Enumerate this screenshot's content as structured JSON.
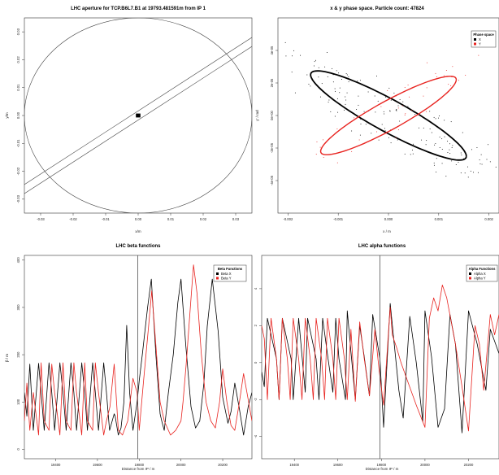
{
  "colors": {
    "black": "#000000",
    "red": "#e8231f",
    "grey": "#555555"
  },
  "panels": {
    "aperture": {
      "title": "LHC aperture for TCP.B6L7.B1 at 19793.481591m from IP 1",
      "xlabel": "x/m",
      "ylabel": "y/m"
    },
    "phase": {
      "title": "x & y phase space. Particle count: 47824",
      "xlabel": "x / m",
      "ylabel": "y' / rad"
    },
    "beta": {
      "title": "LHC beta functions",
      "xlabel": "Distance from IP / m",
      "ylabel": "β / m"
    },
    "alpha": {
      "title": "LHC alpha functions",
      "xlabel": "Distance from IP / m",
      "ylabel": ""
    }
  },
  "chart_data": [
    {
      "type": "scatter",
      "title": "LHC aperture for TCP.B6L7.B1 at 19793.481591m from IP 1",
      "xlabel": "x/m",
      "ylabel": "y/m",
      "xlim": [
        -0.035,
        0.035
      ],
      "ylim": [
        -0.035,
        0.035
      ],
      "xticks": [
        "-0.03",
        "-0.02",
        "-0.01",
        "0.00",
        "0.01",
        "0.02",
        "0.03"
      ],
      "yticks": [
        "-0.03",
        "-0.02",
        "-0.01",
        "0.00",
        "0.01",
        "0.02",
        "0.03"
      ],
      "aperture_circle_radius": 0.035,
      "collimator_angle_deg": 37,
      "collimator_half_gap": 0.0013,
      "beam_spot_half_size": 0.0007,
      "grid": false
    },
    {
      "type": "scatter",
      "title": "x & y phase space. Particle count: 47824",
      "xlabel": "x / m",
      "ylabel": "y' / rad",
      "xlim": [
        -0.0022,
        0.0022
      ],
      "ylim": [
        -6e-05,
        6e-05
      ],
      "xticks": [
        "-0.002",
        "-0.001",
        "0.000",
        "0.001",
        "0.002"
      ],
      "yticks": [
        "-4e-05",
        "-2e-05",
        "0e+00",
        "2e-05",
        "4e-05"
      ],
      "legend": {
        "title": "Phase space",
        "position": "top-right",
        "entries": [
          "X",
          "Y"
        ]
      },
      "series": [
        {
          "name": "X",
          "color": "#000000",
          "ellipse": {
            "center": [
              0,
              0
            ],
            "x_amplitude": 0.00155,
            "y_amplitude": 2.5e-05,
            "slope": "negative"
          }
        },
        {
          "name": "Y",
          "color": "#e8231f",
          "ellipse": {
            "center": [
              0,
              0
            ],
            "x_amplitude": 0.00135,
            "y_amplitude": 2.2e-05,
            "slope": "positive"
          }
        }
      ]
    },
    {
      "type": "line",
      "title": "LHC beta functions",
      "xlabel": "Distance from IP / m",
      "ylabel": "β / m",
      "xlim": [
        19250,
        20340
      ],
      "ylim": [
        -20,
        410
      ],
      "xticks": [
        "19400",
        "19600",
        "19800",
        "20000",
        "20200"
      ],
      "yticks": [
        "0",
        "100",
        "200",
        "300",
        "400"
      ],
      "vline": 19793,
      "legend": {
        "title": "Beta Functions",
        "position": "top-right",
        "entries": [
          "Beta X",
          "Beta Y"
        ]
      },
      "series": [
        {
          "name": "Beta X",
          "color": "#000000",
          "x": [
            19250,
            19262,
            19276,
            19293,
            19318,
            19330,
            19345,
            19368,
            19381,
            19395,
            19420,
            19435,
            19450,
            19473,
            19487,
            19500,
            19525,
            19539,
            19552,
            19577,
            19590,
            19605,
            19630,
            19643,
            19658,
            19680,
            19685,
            19700,
            19713,
            19727,
            19740,
            19754,
            19770,
            19790,
            19800,
            19815,
            19840,
            19858,
            19880,
            19900,
            19908,
            19920,
            19940,
            19963,
            19985,
            20000,
            20023,
            20048,
            20070,
            20090,
            20110,
            20126,
            20150,
            20178,
            20200,
            20225,
            20240,
            20258,
            20280,
            20300,
            20322,
            20340
          ],
          "values": [
            120,
            70,
            180,
            40,
            182,
            120,
            40,
            183,
            120,
            40,
            183,
            120,
            40,
            183,
            120,
            40,
            183,
            120,
            40,
            183,
            120,
            40,
            183,
            120,
            40,
            75,
            70,
            30,
            45,
            100,
            262,
            120,
            40,
            100,
            145,
            200,
            300,
            360,
            200,
            75,
            60,
            40,
            120,
            200,
            310,
            360,
            220,
            90,
            45,
            60,
            140,
            260,
            360,
            250,
            110,
            55,
            80,
            140,
            85,
            30,
            90,
            120
          ]
        },
        {
          "name": "Beta Y",
          "color": "#e8231f",
          "x": [
            19250,
            19262,
            19276,
            19293,
            19318,
            19330,
            19345,
            19368,
            19381,
            19395,
            19420,
            19435,
            19450,
            19473,
            19487,
            19500,
            19525,
            19539,
            19552,
            19577,
            19590,
            19605,
            19630,
            19643,
            19660,
            19680,
            19700,
            19720,
            19745,
            19770,
            19790,
            19800,
            19820,
            19843,
            19860,
            19880,
            19900,
            19920,
            19950,
            19975,
            20000,
            20010,
            20025,
            20045,
            20060,
            20077,
            20098,
            20120,
            20143,
            20165,
            20185,
            20200,
            20220,
            20240,
            20258,
            20280,
            20300,
            20320,
            20340
          ],
          "values": [
            60,
            140,
            40,
            120,
            30,
            183,
            60,
            40,
            180,
            120,
            30,
            183,
            60,
            40,
            183,
            120,
            30,
            183,
            60,
            40,
            183,
            120,
            30,
            60,
            90,
            180,
            40,
            30,
            60,
            150,
            120,
            40,
            140,
            250,
            335,
            220,
            100,
            60,
            30,
            40,
            60,
            100,
            180,
            300,
            390,
            330,
            200,
            100,
            60,
            45,
            100,
            170,
            100,
            50,
            40,
            100,
            160,
            110,
            60
          ]
        }
      ]
    },
    {
      "type": "line",
      "title": "LHC alpha functions",
      "xlabel": "Distance from IP / m",
      "ylabel": "",
      "xlim": [
        19250,
        20340
      ],
      "ylim": [
        -5.2,
        5.8
      ],
      "xticks": [
        "19400",
        "19600",
        "19800",
        "20000",
        "20200"
      ],
      "yticks": [
        "-4",
        "-2",
        "0",
        "2",
        "4"
      ],
      "vline": 19793,
      "legend": {
        "title": "Alpha Functions",
        "position": "top-right",
        "entries": [
          "Alpha X",
          "Alpha Y"
        ]
      },
      "series": [
        {
          "name": "Alpha X",
          "color": "#000000",
          "x": [
            19250,
            19262,
            19276,
            19318,
            19330,
            19345,
            19385,
            19395,
            19420,
            19450,
            19461,
            19500,
            19513,
            19530,
            19555,
            19577,
            19590,
            19605,
            19635,
            19643,
            19660,
            19680,
            19700,
            19720,
            19745,
            19760,
            19793,
            19810,
            19840,
            19880,
            19900,
            19930,
            19960,
            19990,
            20000,
            20030,
            20060,
            20090,
            20115,
            20140,
            20170,
            20200,
            20240,
            20280,
            20300,
            20340
          ],
          "values": [
            -0.5,
            -1.3,
            2.4,
            0.2,
            -2.0,
            2.4,
            0.2,
            -2.0,
            2.4,
            -1.6,
            2.4,
            0.2,
            -2.0,
            2.4,
            0.2,
            -1.6,
            2.4,
            0.2,
            -2.0,
            2.8,
            0.6,
            -2.0,
            2.0,
            0.4,
            -1.8,
            2.6,
            0.2,
            -3.5,
            3.2,
            -1.5,
            -3.0,
            2.5,
            0.0,
            -3.2,
            2.8,
            0.3,
            -3.5,
            -2.5,
            2.6,
            1.0,
            -3.8,
            2.8,
            1.0,
            -1.5,
            1.8,
            0.5
          ]
        },
        {
          "name": "Alpha Y",
          "color": "#e8231f",
          "x": [
            19250,
            19262,
            19276,
            19293,
            19318,
            19330,
            19345,
            19368,
            19381,
            19395,
            19420,
            19435,
            19450,
            19473,
            19487,
            19500,
            19525,
            19539,
            19552,
            19577,
            19590,
            19605,
            19630,
            19643,
            19660,
            19680,
            19700,
            19720,
            19745,
            19770,
            19790,
            19810,
            19840,
            19850,
            19870,
            19890,
            19920,
            19960,
            20000,
            20020,
            20040,
            20060,
            20080,
            20100,
            20140,
            20170,
            20200,
            20230,
            20250,
            20270,
            20300,
            20320,
            20340
          ],
          "values": [
            2.0,
            1.3,
            -2.0,
            2.4,
            0.2,
            -2.0,
            2.4,
            0.2,
            -2.0,
            2.4,
            0.2,
            -2.0,
            2.4,
            0.2,
            -2.0,
            2.4,
            0.2,
            -2.0,
            2.4,
            0.2,
            -2.0,
            2.4,
            0.2,
            -2.0,
            1.8,
            -2.1,
            2.2,
            0.3,
            -1.8,
            1.8,
            -0.5,
            -2.3,
            3.0,
            1.5,
            0.8,
            0.0,
            -1.0,
            -2.3,
            -3.5,
            2.4,
            3.5,
            2.8,
            4.2,
            3.5,
            1.0,
            -1.3,
            -3.7,
            2.0,
            1.0,
            -1.5,
            2.6,
            1.5,
            2.6
          ]
        }
      ]
    }
  ]
}
